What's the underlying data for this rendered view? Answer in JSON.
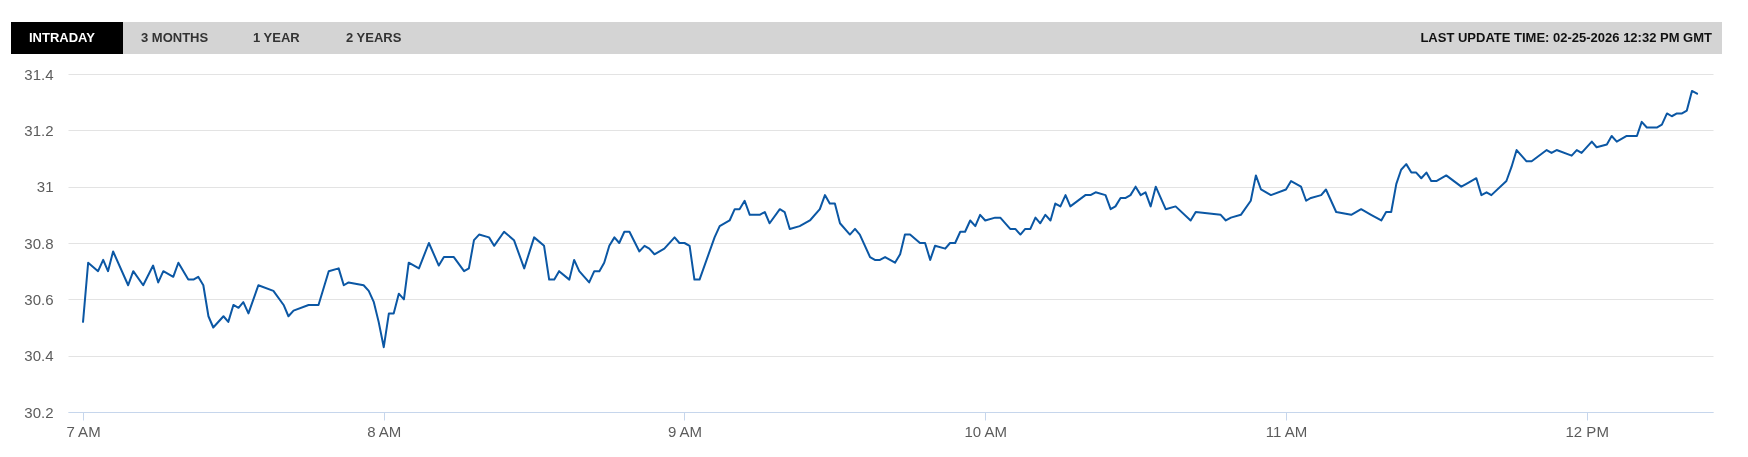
{
  "chart_data": {
    "type": "line",
    "annotations": [
      "INTRADAY",
      "3 MONTHS",
      "1 YEAR",
      "2 YEARS",
      "LAST UPDATE TIME: 02-25-2026 12:32 PM GMT"
    ],
    "x": [
      7,
      7.017,
      7.05,
      7.067,
      7.083,
      7.1,
      7.15,
      7.167,
      7.2,
      7.233,
      7.25,
      7.267,
      7.3,
      7.317,
      7.35,
      7.367,
      7.383,
      7.4,
      7.417,
      7.433,
      7.467,
      7.483,
      7.5,
      7.517,
      7.533,
      7.55,
      7.583,
      7.633,
      7.667,
      7.683,
      7.7,
      7.75,
      7.783,
      7.817,
      7.85,
      7.867,
      7.883,
      7.933,
      7.95,
      7.967,
      7.983,
      8,
      8.017,
      8.033,
      8.05,
      8.067,
      8.083,
      8.117,
      8.15,
      8.183,
      8.2,
      8.233,
      8.267,
      8.283,
      8.3,
      8.317,
      8.35,
      8.367,
      8.4,
      8.433,
      8.467,
      8.5,
      8.533,
      8.55,
      8.567,
      8.583,
      8.617,
      8.633,
      8.65,
      8.683,
      8.7,
      8.717,
      8.733,
      8.75,
      8.767,
      8.783,
      8.8,
      8.817,
      8.85,
      8.867,
      8.883,
      8.9,
      8.933,
      8.967,
      8.983,
      9,
      9.017,
      9.033,
      9.05,
      9.1,
      9.117,
      9.15,
      9.167,
      9.183,
      9.2,
      9.217,
      9.25,
      9.267,
      9.283,
      9.317,
      9.333,
      9.35,
      9.383,
      9.417,
      9.45,
      9.467,
      9.483,
      9.5,
      9.517,
      9.55,
      9.567,
      9.583,
      9.617,
      9.633,
      9.65,
      9.667,
      9.7,
      9.717,
      9.733,
      9.75,
      9.783,
      9.8,
      9.817,
      9.833,
      9.867,
      9.883,
      9.9,
      9.917,
      9.933,
      9.95,
      9.967,
      9.983,
      10,
      10.033,
      10.05,
      10.083,
      10.1,
      10.117,
      10.133,
      10.15,
      10.167,
      10.183,
      10.2,
      10.217,
      10.233,
      10.25,
      10.267,
      10.283,
      10.333,
      10.35,
      10.367,
      10.4,
      10.417,
      10.433,
      10.45,
      10.467,
      10.483,
      10.5,
      10.517,
      10.533,
      10.55,
      10.567,
      10.6,
      10.633,
      10.683,
      10.7,
      10.783,
      10.8,
      10.817,
      10.85,
      10.883,
      10.9,
      10.917,
      10.95,
      11,
      11.017,
      11.05,
      11.067,
      11.083,
      11.117,
      11.133,
      11.167,
      11.217,
      11.25,
      11.283,
      11.317,
      11.333,
      11.35,
      11.367,
      11.383,
      11.4,
      11.417,
      11.433,
      11.45,
      11.467,
      11.483,
      11.5,
      11.533,
      11.583,
      11.6,
      11.633,
      11.65,
      11.667,
      11.683,
      11.733,
      11.75,
      11.767,
      11.8,
      11.817,
      11.867,
      11.883,
      11.9,
      11.95,
      11.967,
      11.983,
      12.017,
      12.033,
      12.067,
      12.083,
      12.1,
      12.133,
      12.167,
      12.183,
      12.2,
      12.233,
      12.25,
      12.267,
      12.283,
      12.3,
      12.317,
      12.333,
      12.35,
      12.367
    ],
    "series": [
      {
        "color": "#0b57a4",
        "line_style": "solid",
        "values": [
          30.52,
          30.73,
          30.7,
          30.74,
          30.7,
          30.77,
          30.65,
          30.7,
          30.65,
          30.72,
          30.66,
          30.7,
          30.68,
          30.73,
          30.67,
          30.67,
          30.68,
          30.65,
          30.54,
          30.5,
          30.54,
          30.52,
          30.58,
          30.57,
          30.59,
          30.55,
          30.65,
          30.63,
          30.58,
          30.54,
          30.56,
          30.58,
          30.58,
          30.7,
          30.71,
          30.65,
          30.66,
          30.65,
          30.63,
          30.59,
          30.52,
          30.43,
          30.55,
          30.55,
          30.62,
          30.6,
          30.73,
          30.71,
          30.8,
          30.72,
          30.75,
          30.75,
          30.7,
          30.71,
          30.81,
          30.83,
          30.82,
          30.79,
          30.84,
          30.81,
          30.71,
          30.82,
          30.79,
          30.67,
          30.67,
          30.7,
          30.67,
          30.74,
          30.7,
          30.66,
          30.7,
          30.7,
          30.73,
          30.79,
          30.82,
          30.8,
          30.84,
          30.84,
          30.77,
          30.79,
          30.78,
          30.76,
          30.78,
          30.82,
          30.8,
          30.8,
          30.79,
          30.67,
          30.67,
          30.82,
          30.86,
          30.88,
          30.92,
          30.92,
          30.95,
          30.9,
          30.9,
          30.91,
          30.87,
          30.92,
          30.91,
          30.85,
          30.86,
          30.88,
          30.92,
          30.97,
          30.94,
          30.94,
          30.87,
          30.83,
          30.85,
          30.83,
          30.75,
          30.74,
          30.74,
          30.75,
          30.73,
          30.76,
          30.83,
          30.83,
          30.8,
          30.8,
          30.74,
          30.79,
          30.78,
          30.8,
          30.8,
          30.84,
          30.84,
          30.88,
          30.86,
          30.9,
          30.88,
          30.89,
          30.89,
          30.85,
          30.85,
          30.83,
          30.85,
          30.85,
          30.89,
          30.87,
          30.9,
          30.88,
          30.94,
          30.93,
          30.97,
          30.93,
          30.97,
          30.97,
          30.98,
          30.97,
          30.92,
          30.93,
          30.96,
          30.96,
          30.97,
          31.0,
          30.97,
          30.98,
          30.93,
          31.0,
          30.92,
          30.93,
          30.88,
          30.91,
          30.9,
          30.88,
          30.89,
          30.9,
          30.95,
          31.04,
          30.99,
          30.97,
          30.99,
          31.02,
          31.0,
          30.95,
          30.96,
          30.97,
          30.99,
          30.91,
          30.9,
          30.92,
          30.9,
          30.88,
          30.91,
          30.91,
          31.01,
          31.06,
          31.08,
          31.05,
          31.05,
          31.03,
          31.05,
          31.02,
          31.02,
          31.04,
          31.0,
          31.01,
          31.03,
          30.97,
          30.98,
          30.97,
          31.02,
          31.07,
          31.13,
          31.09,
          31.09,
          31.13,
          31.12,
          31.13,
          31.11,
          31.13,
          31.12,
          31.16,
          31.14,
          31.15,
          31.18,
          31.16,
          31.18,
          31.18,
          31.23,
          31.21,
          31.21,
          31.22,
          31.26,
          31.25,
          31.26,
          31.26,
          31.27,
          31.34,
          31.33
        ]
      }
    ],
    "xlim": [
      6.95,
      12.42
    ],
    "xticks": [
      {
        "value": 7,
        "label": "7 AM"
      },
      {
        "value": 8,
        "label": "8 AM"
      },
      {
        "value": 9,
        "label": "9 AM"
      },
      {
        "value": 10,
        "label": "10 AM"
      },
      {
        "value": 11,
        "label": "11 AM"
      },
      {
        "value": 12,
        "label": "12 PM"
      }
    ],
    "ylim": [
      30.2,
      31.4
    ],
    "yticks": [
      30.2,
      30.4,
      30.6,
      30.8,
      31,
      31.2,
      31.4
    ],
    "grid": "y"
  }
}
